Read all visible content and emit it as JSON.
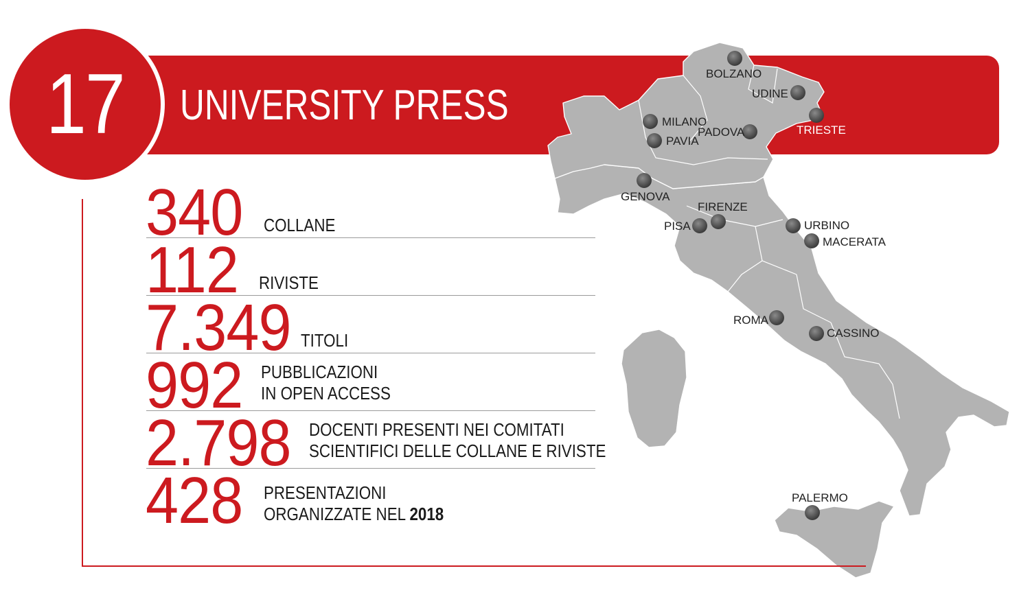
{
  "header": {
    "badge_number": "17",
    "title": "UNIVERSITY PRESS"
  },
  "stats": [
    {
      "value": "340",
      "label_line1": "COLLANE",
      "label_line2": ""
    },
    {
      "value": "112",
      "label_line1": "RIVISTE",
      "label_line2": ""
    },
    {
      "value": "7.349",
      "label_line1": "TITOLI",
      "label_line2": ""
    },
    {
      "value": "992",
      "label_line1": "PUBBLICAZIONI",
      "label_line2": "IN OPEN ACCESS"
    },
    {
      "value": "2.798",
      "label_line1": "DOCENTI PRESENTI NEI COMITATI",
      "label_line2": "SCIENTIFICI DELLE COLLANE E RIVISTE"
    },
    {
      "value": "428",
      "label_line1": "PRESENTAZIONI",
      "label_line2": "ORGANIZZATE NEL",
      "label_line2_bold": "2018"
    }
  ],
  "cities": [
    {
      "name": "BOLZANO"
    },
    {
      "name": "UDINE"
    },
    {
      "name": "TRIESTE"
    },
    {
      "name": "MILANO"
    },
    {
      "name": "PADOVA"
    },
    {
      "name": "PAVIA"
    },
    {
      "name": "GENOVA"
    },
    {
      "name": "FIRENZE"
    },
    {
      "name": "PISA"
    },
    {
      "name": "URBINO"
    },
    {
      "name": "MACERATA"
    },
    {
      "name": "ROMA"
    },
    {
      "name": "CASSINO"
    },
    {
      "name": "PALERMO"
    }
  ],
  "colors": {
    "accent": "#cc1a1f",
    "map_fill": "#b3b3b3",
    "marker": "#555555"
  },
  "icons": {
    "city_marker": "city-marker-icon"
  }
}
